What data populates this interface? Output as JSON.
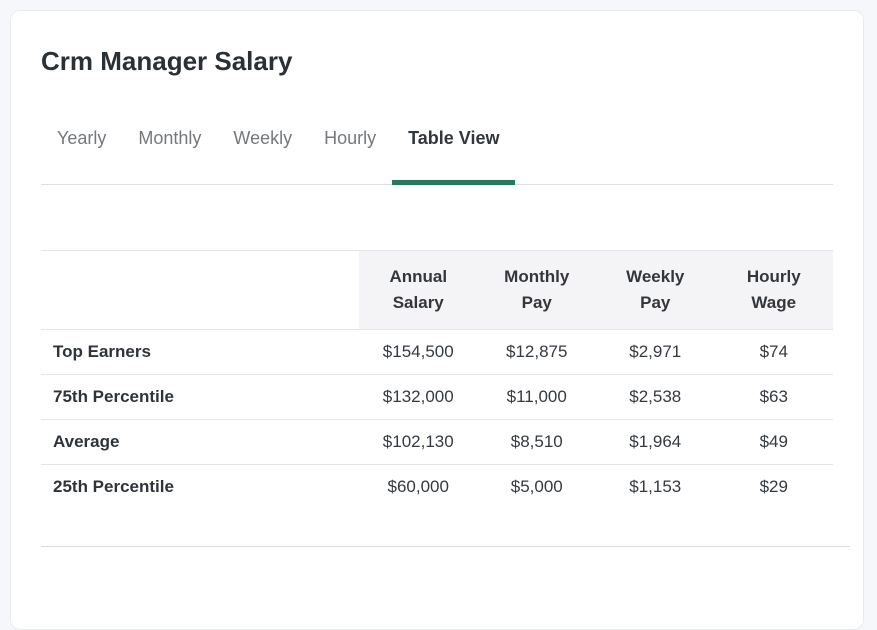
{
  "page_title": "Crm Manager Salary",
  "tabs": [
    {
      "label": "Yearly",
      "active": false
    },
    {
      "label": "Monthly",
      "active": false
    },
    {
      "label": "Weekly",
      "active": false
    },
    {
      "label": "Hourly",
      "active": false
    },
    {
      "label": "Table View",
      "active": true
    }
  ],
  "table": {
    "corner_label": "",
    "columns": [
      "Annual Salary",
      "Monthly Pay",
      "Weekly Pay",
      "Hourly Wage"
    ],
    "rows": [
      {
        "label": "Top Earners",
        "values": [
          "$154,500",
          "$12,875",
          "$2,971",
          "$74"
        ]
      },
      {
        "label": "75th Percentile",
        "values": [
          "$132,000",
          "$11,000",
          "$2,538",
          "$63"
        ]
      },
      {
        "label": "Average",
        "values": [
          "$102,130",
          "$8,510",
          "$1,964",
          "$49"
        ]
      },
      {
        "label": "25th Percentile",
        "values": [
          "$60,000",
          "$5,000",
          "$1,153",
          "$29"
        ]
      }
    ]
  },
  "colors": {
    "accent_underline": "#26795f",
    "header_background": "#f4f4f6",
    "active_tab_text": "#33373c",
    "inactive_tab_text": "#74787d"
  }
}
